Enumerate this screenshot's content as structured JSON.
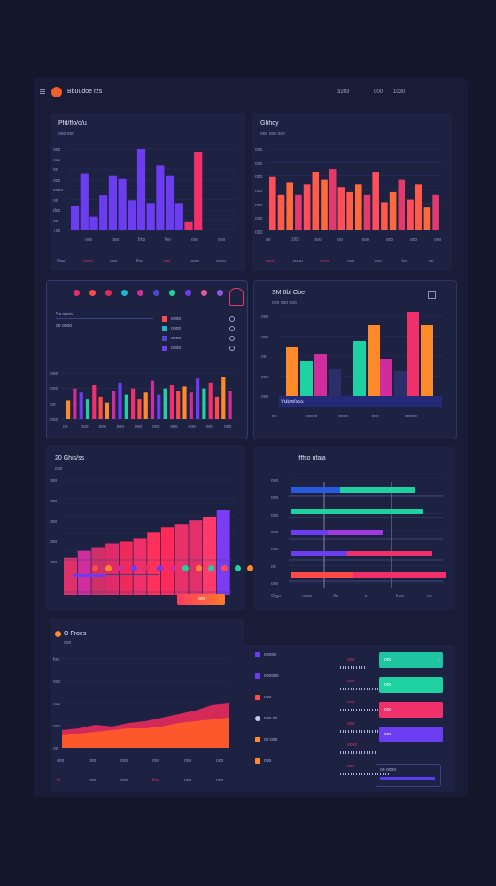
{
  "app": {
    "brand": "Bbuudoe rzs",
    "topbar_right": [
      "3203",
      "000",
      "1030"
    ]
  },
  "colors": {
    "bg": "#141729",
    "panel": "#1d2142",
    "violet": "#6b3cf0",
    "pink": "#f0306a",
    "orange": "#ff8a2a",
    "teal": "#1fd1a0",
    "red": "#ff4a4a",
    "magenta": "#d02d9c"
  },
  "panel_a": {
    "title": "Pfd/ffo/o/u",
    "sub": "ooo  ooo",
    "yticks": [
      "ooo",
      "ooo",
      "oo",
      "ooo",
      "oooo",
      "oo",
      "doo",
      "oo",
      "7oo"
    ],
    "xticks": [
      "ooo",
      "ooo",
      "f/oo",
      "foo",
      "ooo",
      "ooo"
    ],
    "legend": [
      "Oao",
      "oooo",
      "ooo",
      "ffos",
      "ooo",
      "oooo",
      "oooo"
    ]
  },
  "panel_b": {
    "title": "Ghhdy",
    "sub": "ooo  ooo  ooo",
    "yticks": [
      "ooo",
      "ooo",
      "ooo",
      "ooo",
      "ooo",
      "ooo",
      "000"
    ],
    "xticks": [
      "oo",
      "1001",
      "ooo",
      "oo",
      "ooo",
      "ooo",
      "ooo",
      "ooo"
    ],
    "legend": [
      "oooo",
      "oooo",
      "oooo",
      "ooo",
      "ooo",
      "foo",
      "oo"
    ]
  },
  "panel_c": {
    "sub_rows": [
      "Sa oooo",
      "oo oooo"
    ],
    "list_items": [
      "oooo",
      "oooo",
      "oooo",
      "oooo"
    ],
    "yticks": [
      "ooo",
      "ooo",
      "oo",
      "ooo"
    ],
    "xticks": [
      "oo",
      "ooo",
      "ooo",
      "ooo",
      "ooo",
      "ooo",
      "ooo",
      "ooo",
      "ooo",
      "ooo"
    ]
  },
  "panel_d": {
    "title": "SM 6bl Obe",
    "sub": "ooo  ooo  ooo",
    "yticks": [
      "ooo",
      "ooo",
      "oo",
      "ooo",
      "ooo"
    ],
    "legend_title": "Vdbwfsss",
    "xticks": [
      "oo",
      "ooooo",
      "oooo",
      "ooo",
      "ooooo"
    ]
  },
  "panel_e": {
    "title": "20 Ghis/ss",
    "sub": "ooo",
    "yticks": [
      "ooo",
      "ooo",
      "ooo",
      "ooo",
      "ooo"
    ],
    "button": "ooo"
  },
  "panel_f": {
    "title": "lfffso ufaia",
    "yticks": [
      "ooo",
      "ooo",
      "ooo",
      "ooo",
      "ooo",
      "oo",
      "ooo"
    ],
    "xticks": [
      "Ofgo",
      "oooo",
      "f/o",
      "o",
      "foss",
      "oo"
    ]
  },
  "panel_g": {
    "title": "O Froes",
    "sub": "ooo",
    "yticks": [
      "foo",
      "ooo",
      "ooo",
      "ooo",
      "oo"
    ],
    "xticks": [
      "ooo",
      "ooo",
      "ooo",
      "ooo",
      "ooo",
      "ooo"
    ],
    "bottom": [
      "fo",
      "ooo",
      "ooo",
      "foo",
      "ooo",
      "ooo"
    ]
  },
  "panel_h": {
    "rows": [
      {
        "label": "ooooo",
        "value": "ooo"
      },
      {
        "label": "oooooo",
        "value": "ooo"
      },
      {
        "label": "ooo",
        "value": "ooo"
      },
      {
        "label": "ooo oo",
        "value": "ooo"
      },
      {
        "label": "oo ooo",
        "value": "oooo"
      },
      {
        "label": "ooo",
        "value": "ooo"
      }
    ],
    "buttons": [
      "ooo",
      "ooo",
      "ooo",
      "ooo"
    ],
    "footer": [
      "oo oooo",
      "oooooooo"
    ]
  },
  "chart_data": [
    {
      "type": "bar",
      "series": [
        {
          "values": [
            18,
            42,
            10,
            26,
            40,
            38,
            22,
            60,
            20,
            48,
            40,
            20,
            6,
            58
          ]
        }
      ]
    },
    {
      "type": "bar",
      "series": [
        {
          "values": [
            42,
            28,
            38,
            28,
            36,
            46,
            40,
            48,
            34,
            30,
            36,
            28,
            46,
            22,
            30,
            40,
            24,
            36,
            18,
            28
          ]
        }
      ]
    },
    {
      "type": "bar",
      "series": [
        {
          "values": [
            18,
            30,
            26,
            20,
            34,
            22,
            16,
            28,
            36,
            24,
            30,
            20,
            26,
            38,
            24,
            30,
            34,
            28,
            32,
            26,
            40,
            30,
            36,
            22,
            42,
            28
          ]
        }
      ]
    },
    {
      "type": "bar",
      "series": [
        {
          "values": [
            55,
            40,
            48,
            30,
            62,
            80,
            42,
            28,
            95,
            80
          ]
        }
      ]
    },
    {
      "type": "bar",
      "series": [
        {
          "values": [
            22,
            30,
            34,
            38,
            40,
            44,
            50,
            56,
            60,
            64,
            68,
            75
          ]
        }
      ]
    },
    {
      "type": "bar",
      "series": [
        {
          "values": [
            70,
            75,
            52,
            80,
            88
          ]
        }
      ]
    },
    {
      "type": "area",
      "series": [
        {
          "values": [
            20,
            22,
            26,
            24,
            28,
            30,
            34,
            38,
            42,
            48,
            50
          ]
        },
        {
          "values": [
            14,
            16,
            18,
            20,
            22,
            22,
            24,
            28,
            30,
            32,
            34
          ]
        }
      ]
    }
  ]
}
